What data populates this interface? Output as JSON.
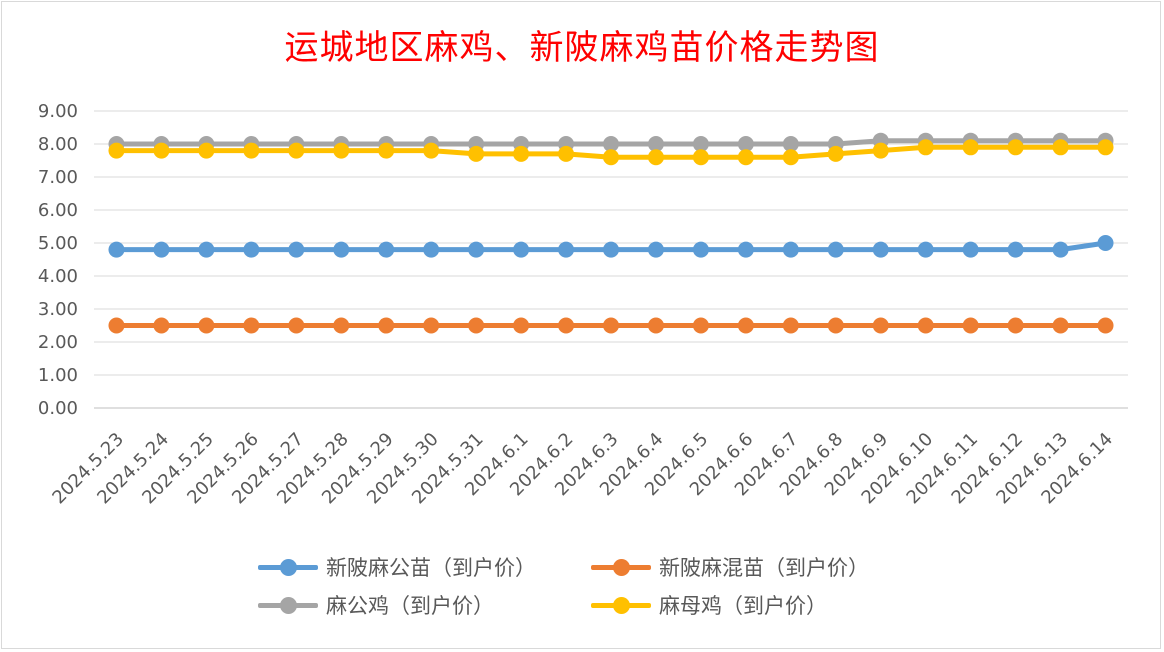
{
  "chart_data": {
    "type": "line",
    "title": "运城地区麻鸡、新陂麻鸡苗价格走势图",
    "xlabel": "",
    "ylabel": "",
    "ylim": [
      0,
      9
    ],
    "y_ticks": [
      "0.00",
      "1.00",
      "2.00",
      "3.00",
      "4.00",
      "5.00",
      "6.00",
      "7.00",
      "8.00",
      "9.00"
    ],
    "grid": true,
    "legend_position": "bottom",
    "categories": [
      "2024.5.23",
      "2024.5.24",
      "2024.5.25",
      "2024.5.26",
      "2024.5.27",
      "2024.5.28",
      "2024.5.29",
      "2024.5.30",
      "2024.5.31",
      "2024.6.1",
      "2024.6.2",
      "2024.6.3",
      "2024.6.4",
      "2024.6.5",
      "2024.6.6",
      "2024.6.7",
      "2024.6.8",
      "2024.6.9",
      "2024.6.10",
      "2024.6.11",
      "2024.6.12",
      "2024.6.13",
      "2024.6.14"
    ],
    "series": [
      {
        "name": "新陂麻公苗（到户价）",
        "color": "#5b9bd5",
        "values": [
          4.8,
          4.8,
          4.8,
          4.8,
          4.8,
          4.8,
          4.8,
          4.8,
          4.8,
          4.8,
          4.8,
          4.8,
          4.8,
          4.8,
          4.8,
          4.8,
          4.8,
          4.8,
          4.8,
          4.8,
          4.8,
          4.8,
          5.0
        ]
      },
      {
        "name": "新陂麻混苗（到户价）",
        "color": "#ed7d31",
        "values": [
          2.5,
          2.5,
          2.5,
          2.5,
          2.5,
          2.5,
          2.5,
          2.5,
          2.5,
          2.5,
          2.5,
          2.5,
          2.5,
          2.5,
          2.5,
          2.5,
          2.5,
          2.5,
          2.5,
          2.5,
          2.5,
          2.5,
          2.5
        ]
      },
      {
        "name": "麻公鸡（到户价）",
        "color": "#a5a5a5",
        "values": [
          8.0,
          8.0,
          8.0,
          8.0,
          8.0,
          8.0,
          8.0,
          8.0,
          8.0,
          8.0,
          8.0,
          8.0,
          8.0,
          8.0,
          8.0,
          8.0,
          8.0,
          8.1,
          8.1,
          8.1,
          8.1,
          8.1,
          8.1
        ]
      },
      {
        "name": "麻母鸡（到户价）",
        "color": "#ffc000",
        "values": [
          7.8,
          7.8,
          7.8,
          7.8,
          7.8,
          7.8,
          7.8,
          7.8,
          7.7,
          7.7,
          7.7,
          7.6,
          7.6,
          7.6,
          7.6,
          7.6,
          7.7,
          7.8,
          7.9,
          7.9,
          7.9,
          7.9,
          7.9
        ]
      }
    ]
  }
}
